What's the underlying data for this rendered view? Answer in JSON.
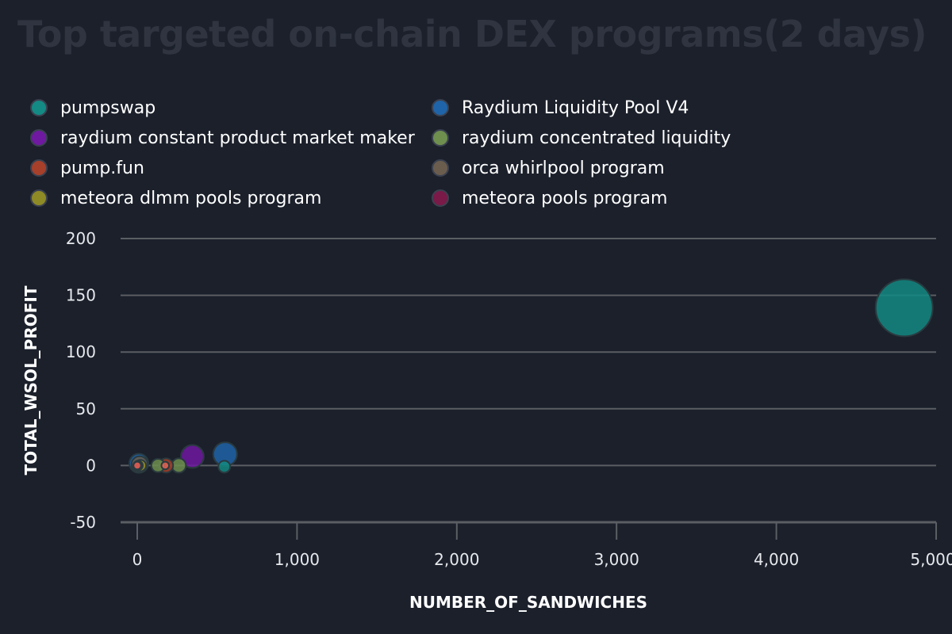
{
  "chart_data": {
    "type": "scatter",
    "title": "Top targeted on-chain DEX programs(2 days)",
    "xlabel": "NUMBER_OF_SANDWICHES",
    "ylabel": "TOTAL_WSOL_PROFIT",
    "xlim": [
      -100,
      5000
    ],
    "ylim": [
      -50,
      200
    ],
    "x_ticks": [
      "0",
      "1,000",
      "2,000",
      "3,000",
      "4,000",
      "5,000"
    ],
    "x_tick_values": [
      0,
      1000,
      2000,
      3000,
      4000,
      5000
    ],
    "y_ticks": [
      "200",
      "150",
      "100",
      "50",
      "0",
      "-50"
    ],
    "y_tick_values": [
      200,
      150,
      100,
      50,
      0,
      -50
    ],
    "grid": "horizontal",
    "legend_placement": "top",
    "series": [
      {
        "name": "pumpswap",
        "color": "#138a83",
        "points": [
          {
            "x": 4800,
            "y": 139,
            "size": 120
          },
          {
            "x": 545,
            "y": -1,
            "size": 25
          }
        ]
      },
      {
        "name": "Raydium Liquidity Pool V4",
        "color": "#1f64a8",
        "points": [
          {
            "x": 550,
            "y": 10,
            "size": 50
          },
          {
            "x": 10,
            "y": 2,
            "size": 40
          }
        ]
      },
      {
        "name": "raydium constant product market maker",
        "color": "#6f19a0",
        "points": [
          {
            "x": 345,
            "y": 8,
            "size": 48
          }
        ]
      },
      {
        "name": "raydium concentrated liquidity",
        "color": "#6e8f4e",
        "points": [
          {
            "x": 260,
            "y": 0,
            "size": 30
          },
          {
            "x": 130,
            "y": 0,
            "size": 28
          }
        ]
      },
      {
        "name": "pump.fun",
        "color": "#a6402a",
        "points": [
          {
            "x": 180,
            "y": 0,
            "size": 30
          }
        ]
      },
      {
        "name": "orca whirlpool program",
        "color": "#6a5d4e",
        "points": [
          {
            "x": 15,
            "y": 1,
            "size": 34
          }
        ]
      },
      {
        "name": "meteora dlmm pools program",
        "color": "#8e8a25",
        "points": [
          {
            "x": 20,
            "y": 0,
            "size": 24
          }
        ]
      },
      {
        "name": "meteora pools program",
        "color": "#7a1a48",
        "points": [
          {
            "x": 5,
            "y": 0,
            "size": 20
          }
        ]
      },
      {
        "name": "",
        "color": "#e06455",
        "points": [
          {
            "x": 0,
            "y": 0,
            "size": 16
          },
          {
            "x": 175,
            "y": 0,
            "size": 16
          }
        ]
      }
    ]
  },
  "legend": {
    "items": [
      {
        "label": "pumpswap",
        "color": "#138a83"
      },
      {
        "label": "Raydium Liquidity Pool V4",
        "color": "#1f64a8"
      },
      {
        "label": "raydium constant product market maker",
        "color": "#6f19a0"
      },
      {
        "label": "raydium concentrated liquidity",
        "color": "#6e8f4e"
      },
      {
        "label": "pump.fun",
        "color": "#a6402a"
      },
      {
        "label": "orca whirlpool program",
        "color": "#6a5d4e"
      },
      {
        "label": "meteora dlmm pools program",
        "color": "#8e8a25"
      },
      {
        "label": "meteora pools program",
        "color": "#7a1a48"
      }
    ]
  },
  "colors": {
    "background": "#1b202b",
    "grid": "#5b5e63",
    "title": "#2f3440"
  }
}
